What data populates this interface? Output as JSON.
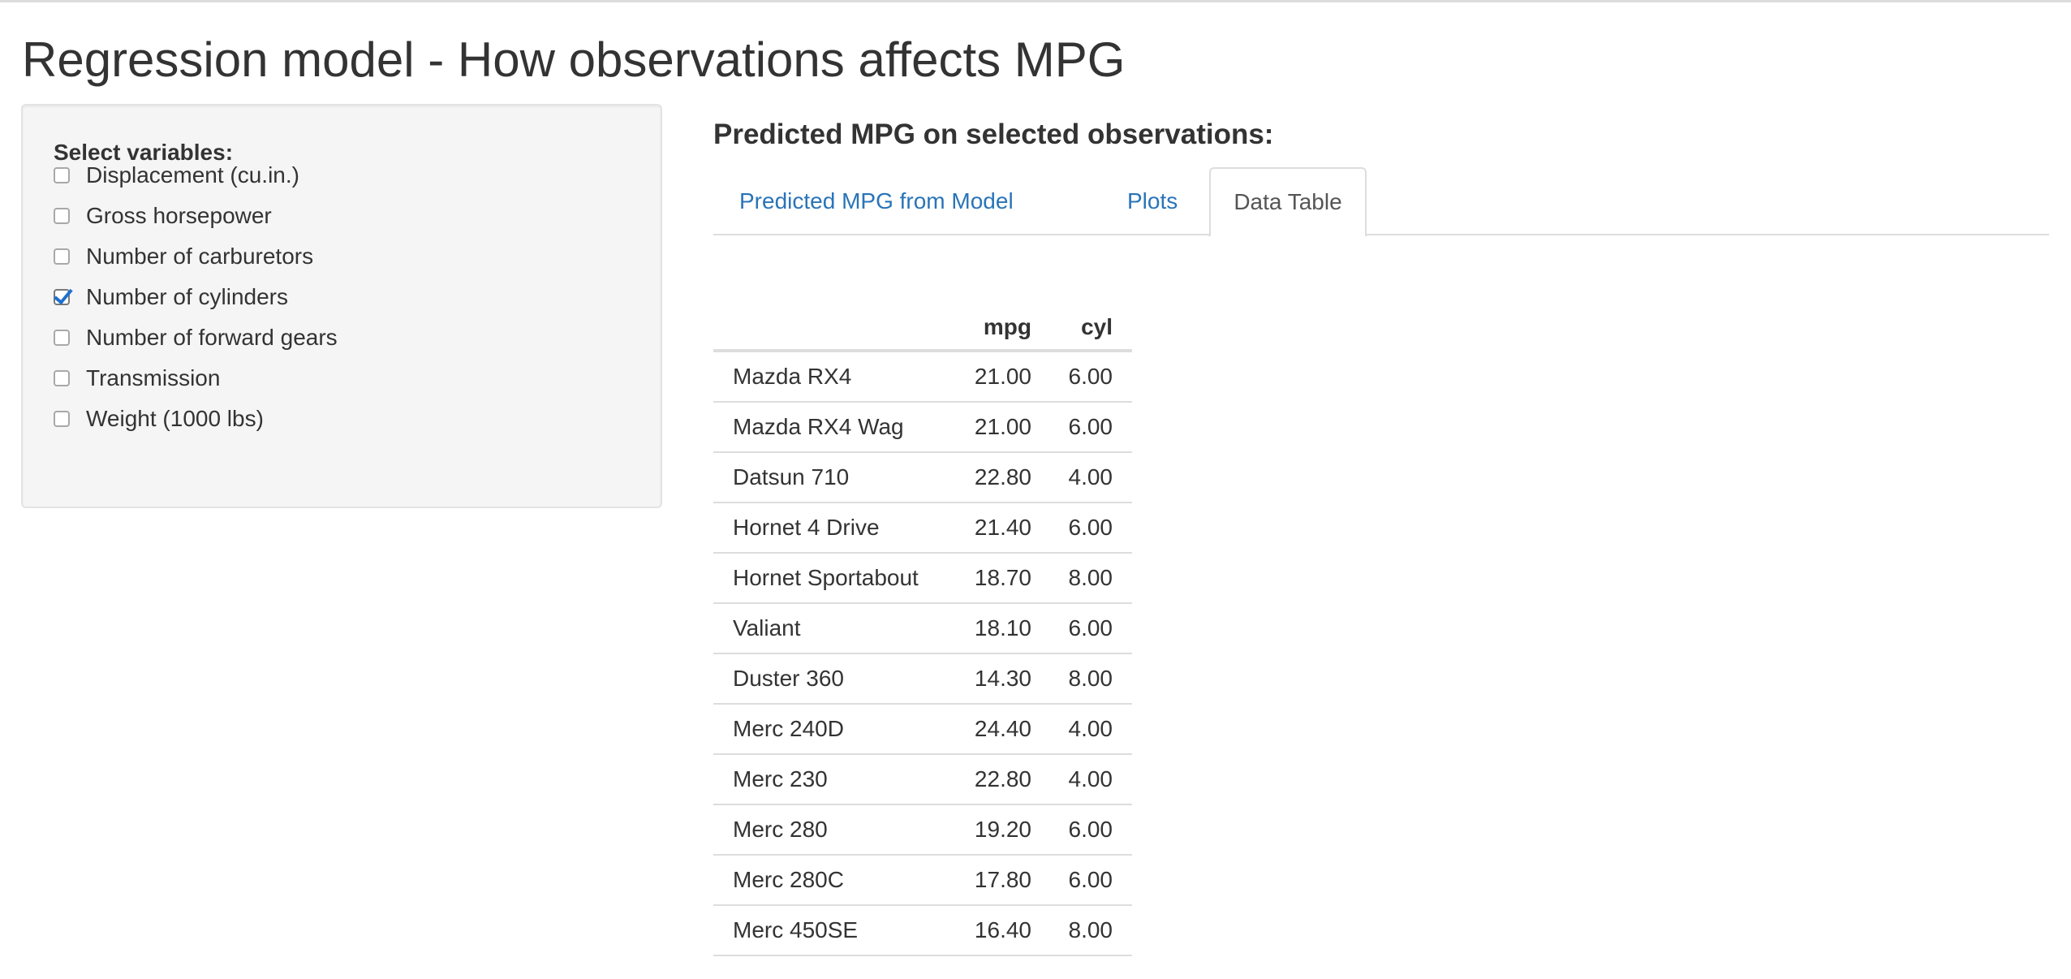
{
  "page": {
    "title": "Regression model - How observations affects MPG"
  },
  "sidebar": {
    "label": "Select variables:",
    "variables": [
      {
        "label": "Displacement (cu.in.)",
        "checked": false
      },
      {
        "label": "Gross horsepower",
        "checked": false
      },
      {
        "label": "Number of carburetors",
        "checked": false
      },
      {
        "label": "Number of cylinders",
        "checked": true
      },
      {
        "label": "Number of forward gears",
        "checked": false
      },
      {
        "label": "Transmission",
        "checked": false
      },
      {
        "label": "Weight (1000 lbs)",
        "checked": false
      }
    ]
  },
  "main": {
    "heading": "Predicted MPG on selected observations:",
    "tabs": [
      {
        "label": "Predicted MPG from Model",
        "active": false
      },
      {
        "label": "Plots",
        "active": false
      },
      {
        "label": "Data Table",
        "active": true
      }
    ],
    "table": {
      "columns": [
        "",
        "mpg",
        "cyl"
      ],
      "rows": [
        [
          "Mazda RX4",
          "21.00",
          "6.00"
        ],
        [
          "Mazda RX4 Wag",
          "21.00",
          "6.00"
        ],
        [
          "Datsun 710",
          "22.80",
          "4.00"
        ],
        [
          "Hornet 4 Drive",
          "21.40",
          "6.00"
        ],
        [
          "Hornet Sportabout",
          "18.70",
          "8.00"
        ],
        [
          "Valiant",
          "18.10",
          "6.00"
        ],
        [
          "Duster 360",
          "14.30",
          "8.00"
        ],
        [
          "Merc 240D",
          "24.40",
          "4.00"
        ],
        [
          "Merc 230",
          "22.80",
          "4.00"
        ],
        [
          "Merc 280",
          "19.20",
          "6.00"
        ],
        [
          "Merc 280C",
          "17.80",
          "6.00"
        ],
        [
          "Merc 450SE",
          "16.40",
          "8.00"
        ]
      ]
    }
  },
  "colors": {
    "link": "#2a74b8",
    "checkbox_accent": "#1f6fce",
    "well_background": "#f5f5f5"
  }
}
